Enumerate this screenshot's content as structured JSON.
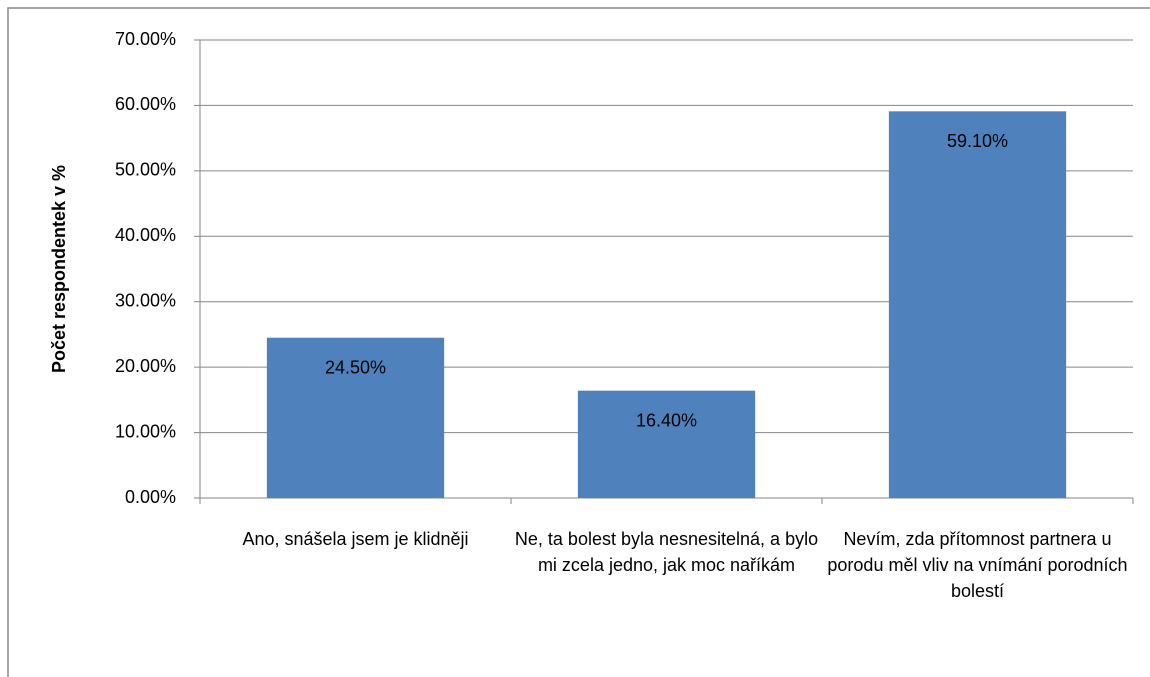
{
  "chart_data": {
    "type": "bar",
    "y_label": "Počet respondentek v %",
    "categories": [
      "Ano, snášela jsem je klidněji",
      "Ne, ta bolest byla nesnesitelná, a bylo mi zcela jedno, jak moc naříkám",
      "Nevím, zda přítomnost partnera u porodu měl vliv na vnímání porodních bolestí"
    ],
    "values": [
      24.5,
      16.4,
      59.1
    ],
    "value_labels": [
      "24.50%",
      "16.40%",
      "59.10%"
    ],
    "color": "#4f81bd",
    "ylim": [
      0,
      70
    ],
    "yticks": [
      {
        "value": 0,
        "label": "0.00%"
      },
      {
        "value": 10,
        "label": "10.00%"
      },
      {
        "value": 20,
        "label": "20.00%"
      },
      {
        "value": 30,
        "label": "30.00%"
      },
      {
        "value": 40,
        "label": "40.00%"
      },
      {
        "value": 50,
        "label": "50.00%"
      },
      {
        "value": 60,
        "label": "60.00%"
      },
      {
        "value": 70,
        "label": "70.00%"
      }
    ],
    "grid": true
  }
}
